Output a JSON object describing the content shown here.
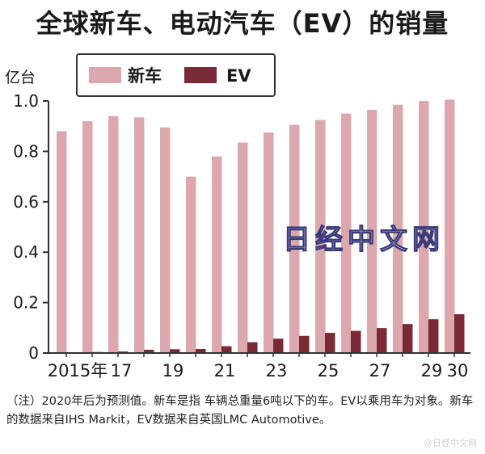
{
  "title": "全球新车、电动汽车（EV）的销量",
  "watermark": "日经中文网",
  "footer_watermark": "@日经中文网",
  "note": "（注）2020年后为预测值。新车是指  车辆总重量6吨以下的车。EV以乘用车为对象。新车的数据来自IHS Markit，EV数据来自英国LMC Automotive。",
  "colors": {
    "new_car": "#dca8ae",
    "ev": "#7a2a36",
    "axis": "#333333"
  },
  "chart_data": {
    "type": "bar",
    "title": "全球新车、电动汽车（EV）的销量",
    "ylabel": "亿台",
    "xlabel": "",
    "ylim": [
      0,
      1.0
    ],
    "yticks": [
      "0",
      "0.2",
      "0.4",
      "0.6",
      "0.8",
      "1.0"
    ],
    "grid": false,
    "legend": "top-left",
    "categories": [
      "2015",
      "2016",
      "2017",
      "2018",
      "2019",
      "2020",
      "2021",
      "2022",
      "2023",
      "2024",
      "2025",
      "2026",
      "2027",
      "2028",
      "2029",
      "2030"
    ],
    "xtick_labels": [
      "2015年",
      "",
      "17",
      "",
      "19",
      "",
      "21",
      "",
      "23",
      "",
      "25",
      "",
      "27",
      "",
      "29",
      "30"
    ],
    "series": [
      {
        "name": "新车",
        "values": [
          0.88,
          0.92,
          0.94,
          0.935,
          0.895,
          0.7,
          0.78,
          0.835,
          0.875,
          0.905,
          0.925,
          0.95,
          0.965,
          0.985,
          1.0,
          1.005
        ]
      },
      {
        "name": "EV",
        "values": [
          0.002,
          0.004,
          0.006,
          0.013,
          0.015,
          0.016,
          0.027,
          0.043,
          0.057,
          0.068,
          0.08,
          0.088,
          0.099,
          0.115,
          0.134,
          0.154
        ]
      }
    ]
  }
}
